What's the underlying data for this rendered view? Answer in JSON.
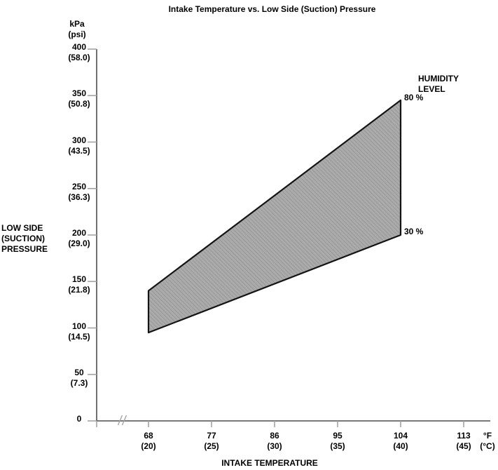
{
  "header": {
    "title": "Intake Temperature vs. Low Side (Suction) Pressure"
  },
  "y_axis": {
    "unit_line1": "kPa",
    "unit_line2": "(psi)",
    "name_line1": "LOW SIDE",
    "name_line2": "(SUCTION)",
    "name_line3": "PRESSURE"
  },
  "x_axis": {
    "name": "INTAKE TEMPERATURE",
    "unit_line1": "°F",
    "unit_line2": "(°C)"
  },
  "legend": {
    "title_line1": "HUMIDITY",
    "title_line2": "LEVEL",
    "upper_label": "80 %",
    "lower_label": "30 %"
  },
  "colors": {
    "background": "#ffffff",
    "text": "#000000",
    "axis": "#4d4d4d",
    "tick": "#a3a3a3",
    "band_fill": "#ababab",
    "band_hatch": "#898989",
    "band_outline": "#141414"
  },
  "chart_data": {
    "type": "area",
    "title": "Intake Temperature vs. Low Side (Suction) Pressure",
    "xlabel": "INTAKE TEMPERATURE",
    "ylabel": "LOW SIDE (SUCTION) PRESSURE",
    "x_units": [
      "°F",
      "(°C)"
    ],
    "y_units": [
      "kPa",
      "(psi)"
    ],
    "x_ticks_f": [
      68,
      77,
      86,
      95,
      104,
      113
    ],
    "x_ticks_c": [
      20,
      25,
      30,
      35,
      40,
      45
    ],
    "y_ticks_kpa": [
      0,
      50,
      100,
      150,
      200,
      250,
      300,
      350,
      400
    ],
    "y_ticks_psi": [
      0,
      7.3,
      14.5,
      21.8,
      29.0,
      36.3,
      43.5,
      50.8,
      58.0
    ],
    "xlim_f": [
      68,
      113
    ],
    "ylim_kpa": [
      0,
      400
    ],
    "grid": false,
    "axis_break_near_origin": true,
    "band_between_series": true,
    "legend_title": "HUMIDITY LEVEL",
    "series": [
      {
        "name": "80 %",
        "humidity_percent": 80,
        "x_f": [
          68,
          104
        ],
        "x_c": [
          20,
          40
        ],
        "y_kpa": [
          140,
          345
        ]
      },
      {
        "name": "30 %",
        "humidity_percent": 30,
        "x_f": [
          68,
          104
        ],
        "x_c": [
          20,
          40
        ],
        "y_kpa": [
          95,
          200
        ]
      }
    ]
  }
}
